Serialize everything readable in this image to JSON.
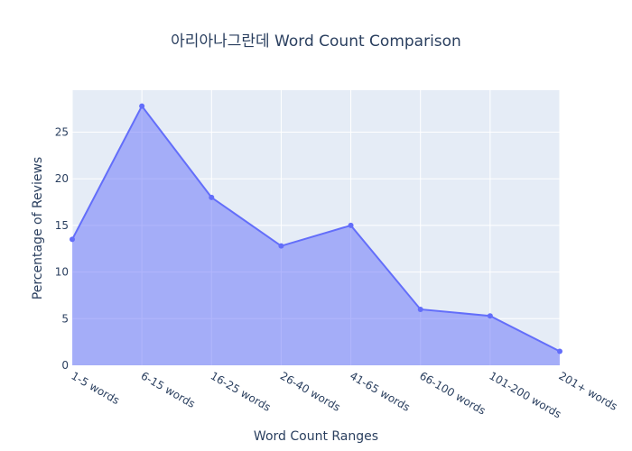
{
  "chart_data": {
    "type": "area",
    "title": "아리아나그란데 Word Count Comparison",
    "xlabel": "Word Count Ranges",
    "ylabel": "Percentage of Reviews",
    "categories": [
      "1-5 words",
      "6-15 words",
      "16-25 words",
      "26-40 words",
      "41-65 words",
      "66-100 words",
      "101-200 words",
      "201+ words"
    ],
    "series": [
      {
        "values": [
          13.5,
          27.8,
          18.0,
          12.8,
          15.0,
          6.0,
          5.3,
          1.5
        ]
      }
    ],
    "ylim": [
      0,
      29.5
    ],
    "yticks": [
      "0",
      "5",
      "10",
      "15",
      "20",
      "25"
    ],
    "ytick_values": [
      0,
      5,
      10,
      15,
      20,
      25
    ],
    "grid": true,
    "colors": {
      "line": "#636efa",
      "fill": "rgba(99,110,250,0.5)",
      "plot_bg": "#e5ecf6",
      "grid": "#ffffff",
      "text": "#2a3f5f"
    }
  }
}
